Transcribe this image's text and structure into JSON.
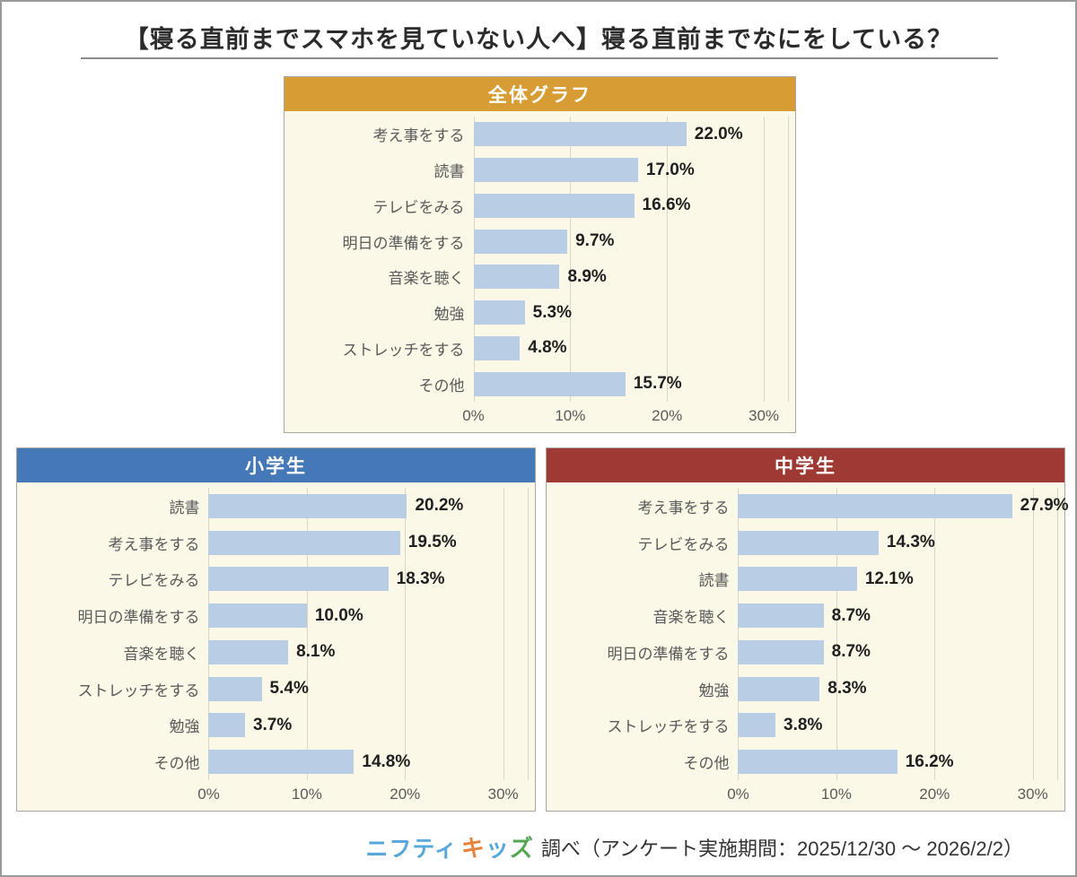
{
  "page": {
    "title": "【寝る直前までスマホを見ていない人へ】寝る直前までなにをしている？"
  },
  "footer": {
    "logo_nifty": "ニフティ",
    "logo_kids": [
      {
        "char": "キ",
        "color": "#e8813b"
      },
      {
        "char": "ッ",
        "color": "#56a7db"
      },
      {
        "char": "ズ",
        "color": "#55a553"
      }
    ],
    "caption": "調べ（アンケート実施期間：2025/12/30 ～ 2026/2/2）"
  },
  "colors": {
    "bar_fill": "#b9cde5",
    "panel_background": "#fcf8e7",
    "gridline": "#d8d5c6",
    "overall_header": "#d89c35",
    "elementary_header": "#4478b7",
    "junior_high_header": "#9e3a33"
  },
  "chart_data": [
    {
      "type": "bar",
      "orientation": "horizontal",
      "title": "全体グラフ",
      "header_color": "#d89c35",
      "categories": [
        "考え事をする",
        "読書",
        "テレビをみる",
        "明日の準備をする",
        "音楽を聴く",
        "勉強",
        "ストレッチをする",
        "その他"
      ],
      "values": [
        22.0,
        17.0,
        16.6,
        9.7,
        8.9,
        5.3,
        4.8,
        15.7
      ],
      "value_labels": [
        "22.0%",
        "17.0%",
        "16.6%",
        "9.7%",
        "8.9%",
        "5.3%",
        "4.8%",
        "15.7%"
      ],
      "xlim": [
        0,
        32.5
      ],
      "x_ticks": [
        {
          "value": 0,
          "label": "0%"
        },
        {
          "value": 10,
          "label": "10%"
        },
        {
          "value": 20,
          "label": "20%"
        },
        {
          "value": 30,
          "label": "30%"
        }
      ],
      "grid": true,
      "legend": "none"
    },
    {
      "type": "bar",
      "orientation": "horizontal",
      "title": "小学生",
      "header_color": "#4478b7",
      "categories": [
        "読書",
        "考え事をする",
        "テレビをみる",
        "明日の準備をする",
        "音楽を聴く",
        "ストレッチをする",
        "勉強",
        "その他"
      ],
      "values": [
        20.2,
        19.5,
        18.3,
        10.0,
        8.1,
        5.4,
        3.7,
        14.8
      ],
      "value_labels": [
        "20.2%",
        "19.5%",
        "18.3%",
        "10.0%",
        "8.1%",
        "5.4%",
        "3.7%",
        "14.8%"
      ],
      "xlim": [
        0,
        32.5
      ],
      "x_ticks": [
        {
          "value": 0,
          "label": "0%"
        },
        {
          "value": 10,
          "label": "10%"
        },
        {
          "value": 20,
          "label": "20%"
        },
        {
          "value": 30,
          "label": "30%"
        }
      ],
      "grid": true,
      "legend": "none"
    },
    {
      "type": "bar",
      "orientation": "horizontal",
      "title": "中学生",
      "header_color": "#9e3a33",
      "categories": [
        "考え事をする",
        "テレビをみる",
        "読書",
        "音楽を聴く",
        "明日の準備をする",
        "勉強",
        "ストレッチをする",
        "その他"
      ],
      "values": [
        27.9,
        14.3,
        12.1,
        8.7,
        8.7,
        8.3,
        3.8,
        16.2
      ],
      "value_labels": [
        "27.9%",
        "14.3%",
        "12.1%",
        "8.7%",
        "8.7%",
        "8.3%",
        "3.8%",
        "16.2%"
      ],
      "xlim": [
        0,
        32.5
      ],
      "x_ticks": [
        {
          "value": 0,
          "label": "0%"
        },
        {
          "value": 10,
          "label": "10%"
        },
        {
          "value": 20,
          "label": "20%"
        },
        {
          "value": 30,
          "label": "30%"
        }
      ],
      "grid": true,
      "legend": "none"
    }
  ]
}
